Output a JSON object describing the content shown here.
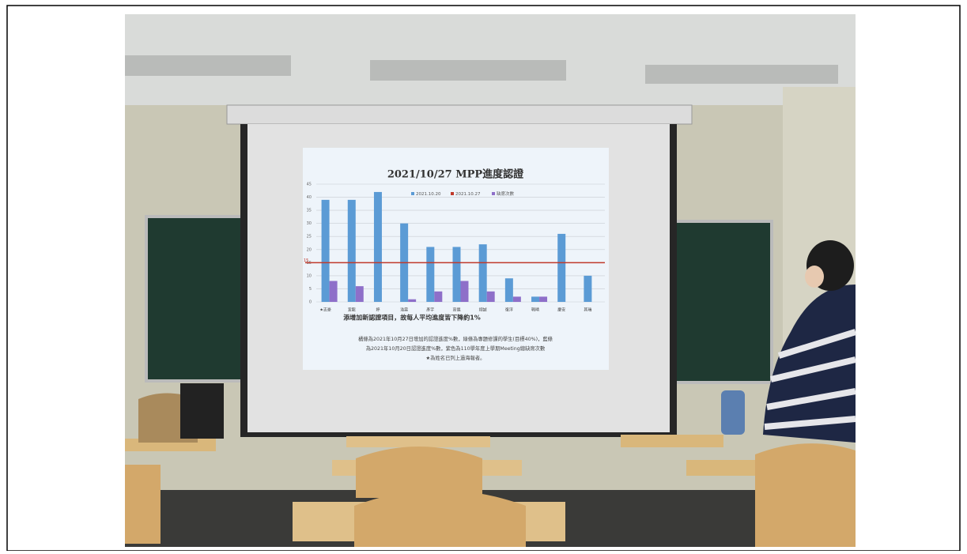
{
  "chart_data": {
    "type": "bar",
    "title": "2021/10/27 MPP進度認證",
    "categories": [
      "★志豪",
      "宜龍",
      "婷",
      "浩霖",
      "彥宇",
      "高儀",
      "翊誠",
      "復淳",
      "珮晴",
      "慶安",
      "其瑞"
    ],
    "series": [
      {
        "name": "2021.10.20",
        "color": "#5b9bd5",
        "values": [
          39,
          39,
          42,
          30,
          21,
          21,
          22,
          9,
          2,
          26,
          10
        ]
      },
      {
        "name": "2021.10.27",
        "color": "#c0392b",
        "line_value": 15
      },
      {
        "name": "缺席次數",
        "color": "#8e6fc9",
        "values": [
          8,
          6,
          null,
          1,
          4,
          8,
          4,
          2,
          2,
          null,
          null
        ]
      }
    ],
    "ylim": [
      0,
      45
    ],
    "yticks": [
      0,
      5,
      10,
      15,
      20,
      25,
      30,
      35,
      40,
      45
    ],
    "grid": true,
    "notes": [
      "添增加新認證項目，故每人平均進度皆下降約1%",
      "橘條為2021年10月27日增加的認證進度%數，綠條為專題修課的學生(目標40%)，藍條",
      "為2021年10月20日認證進度%數，紫色為110學年度上學期Meeting總缺席次數",
      "★為姓名已列上過海報者。"
    ]
  }
}
